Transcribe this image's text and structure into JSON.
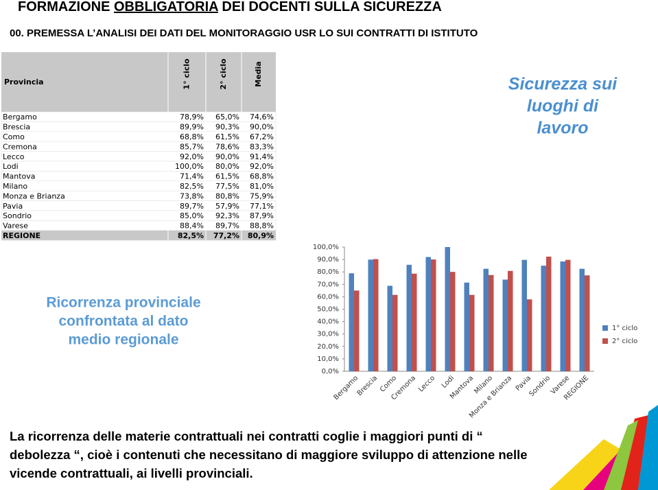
{
  "header": {
    "title": [
      "FORMAZIONE ",
      "OBBLIGATORIA",
      " DEI DOCENTI SULLA SICUREZZA"
    ],
    "subtitle": "00. PREMESSA L’ANALISI DEI DATI DEL MONITORAGGIO USR LO SUI CONTRATTI DI ISTITUTO"
  },
  "table": {
    "columns": [
      "Provincia",
      "1° ciclo",
      "2° ciclo",
      "Media"
    ],
    "rows": [
      [
        "Bergamo",
        "78,9%",
        "65,0%",
        "74,6%"
      ],
      [
        "Brescia",
        "89,9%",
        "90,3%",
        "90,0%"
      ],
      [
        "Como",
        "68,8%",
        "61,5%",
        "67,2%"
      ],
      [
        "Cremona",
        "85,7%",
        "78,6%",
        "83,3%"
      ],
      [
        "Lecco",
        "92,0%",
        "90,0%",
        "91,4%"
      ],
      [
        "Lodi",
        "100,0%",
        "80,0%",
        "92,0%"
      ],
      [
        "Mantova",
        "71,4%",
        "61,5%",
        "68,8%"
      ],
      [
        "Milano",
        "82,5%",
        "77,5%",
        "81,0%"
      ],
      [
        "Monza e Brianza",
        "73,8%",
        "80,8%",
        "75,9%"
      ],
      [
        "Pavia",
        "89,7%",
        "57,9%",
        "77,1%"
      ],
      [
        "Sondrio",
        "85,0%",
        "92,3%",
        "87,9%"
      ],
      [
        "Varese",
        "88,4%",
        "89,7%",
        "88,8%"
      ],
      [
        "REGIONE",
        "82,5%",
        "77,2%",
        "80,9%"
      ]
    ]
  },
  "callouts": {
    "safety": [
      "Sicurezza sui",
      "luoghi di",
      "lavoro"
    ],
    "recurrence": [
      "Ricorrenza provinciale",
      "confrontata al dato",
      "medio regionale"
    ]
  },
  "chart_data": {
    "type": "bar",
    "categories": [
      "Bergamo",
      "Brescia",
      "Como",
      "Cremona",
      "Lecco",
      "Lodi",
      "Mantova",
      "Milano",
      "Monza e Brianza",
      "Pavia",
      "Sondrio",
      "Varese",
      "REGIONE"
    ],
    "series": [
      {
        "name": "1° ciclo",
        "color": "#4f81bd",
        "values": [
          78.9,
          89.9,
          68.8,
          85.7,
          92.0,
          100.0,
          71.4,
          82.5,
          73.8,
          89.7,
          85.0,
          88.4,
          82.5
        ]
      },
      {
        "name": "2° ciclo",
        "color": "#c0504d",
        "values": [
          65.0,
          90.3,
          61.5,
          78.6,
          90.0,
          80.0,
          61.5,
          77.5,
          80.8,
          57.9,
          92.3,
          89.7,
          77.2
        ]
      }
    ],
    "ylim": [
      0,
      100
    ],
    "yticks": [
      {
        "value": 0,
        "label": "0,0%"
      },
      {
        "value": 10,
        "label": "10,0%"
      },
      {
        "value": 20,
        "label": "20,0%"
      },
      {
        "value": 30,
        "label": "30,0%"
      },
      {
        "value": 40,
        "label": "40,0%"
      },
      {
        "value": 50,
        "label": "50,0%"
      },
      {
        "value": 60,
        "label": "60,0%"
      },
      {
        "value": 70,
        "label": "70,0%"
      },
      {
        "value": 80,
        "label": "80,0%"
      },
      {
        "value": 90,
        "label": "90,0%"
      },
      {
        "value": 100,
        "label": "100,0%"
      }
    ],
    "legend": "right"
  },
  "body": [
    "La ricorrenza delle materie contrattuali nei contratti coglie i maggiori punti di “",
    "debolezza “, cioè i contenuti che necessitano di maggiore sviluppo di attenzione nelle",
    "vicende contrattuali, ai livelli provinciali."
  ]
}
